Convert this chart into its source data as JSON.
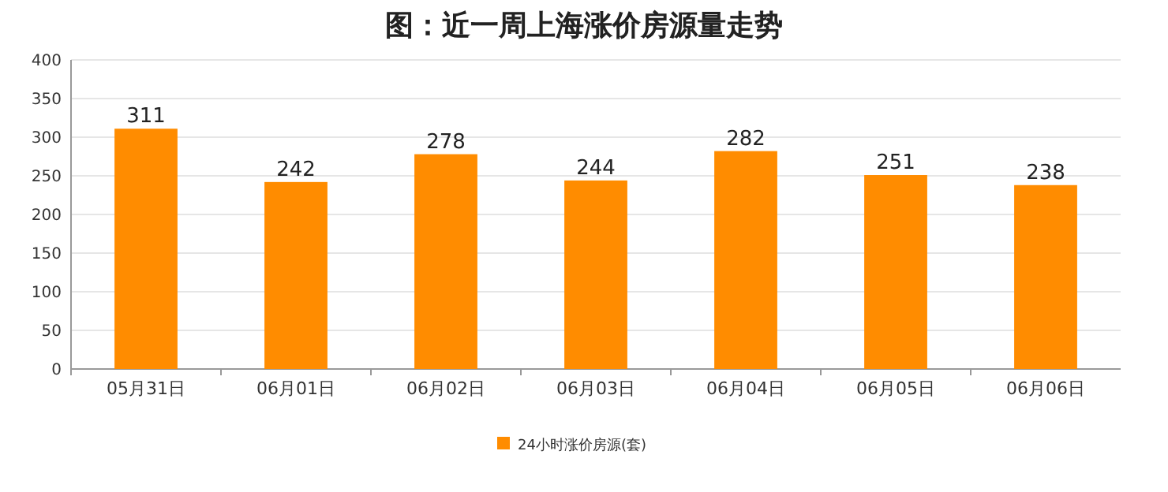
{
  "chart_data": {
    "type": "bar",
    "title": "图：近一周上海涨价房源量走势",
    "categories": [
      "05月31日",
      "06月01日",
      "06月02日",
      "06月03日",
      "06月04日",
      "06月05日",
      "06月06日"
    ],
    "series": [
      {
        "name": "24小时涨价房源(套)",
        "color": "#ff8c00",
        "values": [
          311,
          242,
          278,
          244,
          282,
          251,
          238
        ]
      }
    ],
    "ylim": [
      0,
      400
    ],
    "yticks": [
      0,
      50,
      100,
      150,
      200,
      250,
      300,
      350,
      400
    ],
    "grid": "y",
    "legend": "bottom",
    "data_labels": true
  }
}
